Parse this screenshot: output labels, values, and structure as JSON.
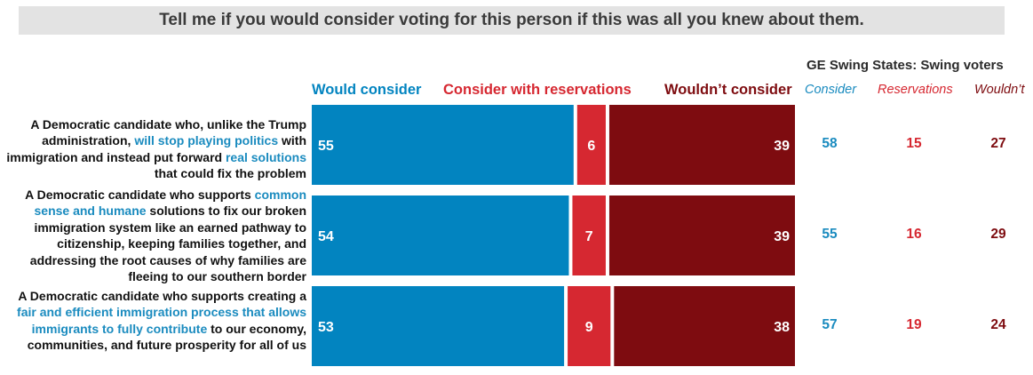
{
  "title": "Tell me if you would consider voting for this person if this was all you knew about them.",
  "colors": {
    "consider": "#0284c0",
    "reservations": "#d62831",
    "wouldnt": "#7e0c10",
    "highlight": "#1a8bbf",
    "title_bg": "#e3e3e3"
  },
  "legend": {
    "consider": "Would consider",
    "reservations": "Consider with reservations",
    "wouldnt": "Wouldn’t consider"
  },
  "side_panel": {
    "title": "GE Swing States: Swing voters",
    "headers": {
      "consider": "Consider",
      "reservations": "Reservations",
      "wouldnt": "Wouldn’t"
    }
  },
  "chart_data": {
    "type": "bar",
    "orientation": "horizontal",
    "stacked": true,
    "categories": [
      "A Democratic candidate who, unlike the Trump administration, will stop playing politics with immigration and instead put forward real solutions that could fix the problem",
      "A Democratic candidate who supports common sense and humane solutions to fix our broken immigration system like an earned pathway to citizenship, keeping families together, and addressing the root causes of why families are fleeing to our southern border",
      "A Democratic candidate who supports creating a fair and efficient immigration process that allows immigrants to fully contribute to our economy, communities, and future prosperity for all of us"
    ],
    "series": [
      {
        "name": "Would consider",
        "values": [
          55,
          54,
          53
        ]
      },
      {
        "name": "Consider with reservations",
        "values": [
          6,
          7,
          9
        ]
      },
      {
        "name": "Wouldn’t consider",
        "values": [
          39,
          39,
          38
        ]
      }
    ],
    "side_table": {
      "title": "GE Swing States: Swing voters",
      "columns": [
        "Consider",
        "Reservations",
        "Wouldn’t"
      ],
      "rows": [
        [
          58,
          15,
          27
        ],
        [
          55,
          16,
          29
        ],
        [
          57,
          19,
          24
        ]
      ]
    },
    "xlim": [
      0,
      100
    ],
    "grid": false,
    "legend": "top"
  },
  "rows": [
    {
      "label_parts": [
        {
          "text": "A Democratic candidate who, unlike the Trump administration, ",
          "hl": false
        },
        {
          "text": "will stop playing politics",
          "hl": true
        },
        {
          "text": " with immigration and instead put forward ",
          "hl": false
        },
        {
          "text": "real solutions",
          "hl": true
        },
        {
          "text": " that could fix the problem",
          "hl": false
        }
      ]
    },
    {
      "label_parts": [
        {
          "text": "A Democratic candidate who supports ",
          "hl": false
        },
        {
          "text": "common sense and humane",
          "hl": true
        },
        {
          "text": " solutions to fix our broken immigration system like an earned pathway to citizenship, keeping families together, and addressing the root causes of why families are fleeing to our southern border",
          "hl": false
        }
      ]
    },
    {
      "label_parts": [
        {
          "text": "A Democratic candidate who supports creating a ",
          "hl": false
        },
        {
          "text": "fair and efficient immigration process that allows immigrants to fully contribute",
          "hl": true
        },
        {
          "text": " to our economy, communities, and future prosperity for all of us",
          "hl": false
        }
      ]
    }
  ]
}
